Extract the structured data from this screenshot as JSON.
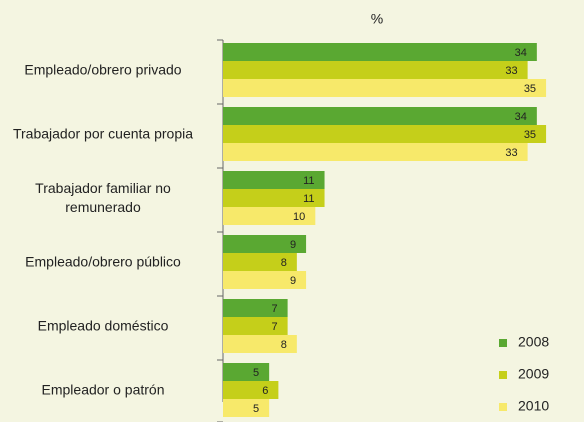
{
  "chart_data": {
    "type": "hbar",
    "title": "%",
    "categories": [
      "Empleado/obrero privado",
      "Trabajador por cuenta propia",
      "Trabajador familiar no remunerado",
      "Empleado/obrero público",
      "Empleado doméstico",
      "Empleador o patrón"
    ],
    "series": [
      {
        "name": "2008",
        "color": "#5aa832",
        "values": [
          34,
          34,
          11,
          9,
          7,
          5
        ]
      },
      {
        "name": "2009",
        "color": "#c5cf1a",
        "values": [
          33,
          35,
          11,
          8,
          7,
          6
        ]
      },
      {
        "name": "2010",
        "color": "#f7e96a",
        "values": [
          35,
          33,
          10,
          9,
          8,
          5
        ]
      }
    ],
    "xlim": [
      0,
      39
    ],
    "legend": "lower right"
  }
}
